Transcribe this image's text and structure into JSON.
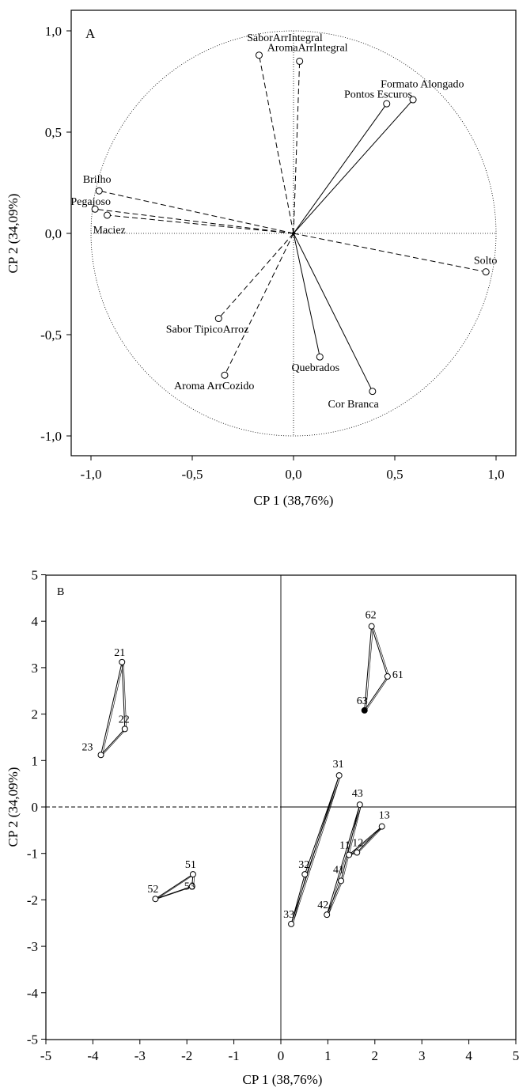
{
  "chart_data": [
    {
      "type": "scatter",
      "panel": "A",
      "xlabel": "CP 1 (38,76%)",
      "ylabel": "CP 2 (34,09%)",
      "xlim": [
        -1.1,
        1.1
      ],
      "ylim": [
        -1.1,
        1.1
      ],
      "xticks": [
        "-1,0",
        "-0,5",
        "0,0",
        "0,5",
        "1,0"
      ],
      "yticks": [
        "1,0",
        "0,5",
        "0,0",
        "-0,5",
        "-1,0"
      ],
      "unit_circle": true,
      "loadings": [
        {
          "label": "SaborArrIntegral",
          "x": -0.17,
          "y": 0.88,
          "style": "dashed"
        },
        {
          "label": "AromaArrIntegral",
          "x": 0.03,
          "y": 0.85,
          "style": "dashed"
        },
        {
          "label": "Formato Alongado",
          "x": 0.59,
          "y": 0.66,
          "style": "solid"
        },
        {
          "label": "Pontos Escuros",
          "x": 0.46,
          "y": 0.64,
          "style": "solid"
        },
        {
          "label": "Brilho",
          "x": -0.96,
          "y": 0.21,
          "style": "dashed"
        },
        {
          "label": "Pegajoso",
          "x": -0.98,
          "y": 0.12,
          "style": "dashed"
        },
        {
          "label": "Maciez",
          "x": -0.92,
          "y": 0.09,
          "style": "dashed"
        },
        {
          "label": "Solto",
          "x": 0.95,
          "y": -0.19,
          "style": "dashed"
        },
        {
          "label": "Sabor TipicoArroz",
          "x": -0.37,
          "y": -0.42,
          "style": "dashed"
        },
        {
          "label": "Quebrados",
          "x": 0.13,
          "y": -0.61,
          "style": "solid"
        },
        {
          "label": "Aroma ArrCozido",
          "x": -0.34,
          "y": -0.7,
          "style": "dashed"
        },
        {
          "label": "Cor Branca",
          "x": 0.39,
          "y": -0.78,
          "style": "solid"
        }
      ]
    },
    {
      "type": "scatter",
      "panel": "B",
      "xlabel": "CP 1 (38,76%)",
      "ylabel": "CP 2 (34,09%)",
      "xlim": [
        -5,
        5
      ],
      "ylim": [
        -5,
        5
      ],
      "xticks": [
        "-5",
        "-4",
        "-3",
        "-2",
        "-1",
        "0",
        "1",
        "2",
        "3",
        "4",
        "5"
      ],
      "yticks": [
        "5",
        "4",
        "3",
        "2",
        "1",
        "0",
        "-1",
        "-2",
        "-3",
        "-4",
        "-5"
      ],
      "points": [
        {
          "label": "21",
          "x": -3.38,
          "y": 3.12
        },
        {
          "label": "22",
          "x": -3.32,
          "y": 1.68
        },
        {
          "label": "23",
          "x": -3.83,
          "y": 1.12
        },
        {
          "label": "31",
          "x": 1.24,
          "y": 0.68
        },
        {
          "label": "32",
          "x": 0.51,
          "y": -1.45
        },
        {
          "label": "33",
          "x": 0.22,
          "y": -2.52
        },
        {
          "label": "11",
          "x": 1.45,
          "y": -1.03
        },
        {
          "label": "12",
          "x": 1.62,
          "y": -0.98
        },
        {
          "label": "13",
          "x": 2.15,
          "y": -0.42
        },
        {
          "label": "41",
          "x": 1.28,
          "y": -1.59
        },
        {
          "label": "42",
          "x": 0.98,
          "y": -2.32
        },
        {
          "label": "43",
          "x": 1.68,
          "y": 0.05
        },
        {
          "label": "51",
          "x": -1.87,
          "y": -1.45
        },
        {
          "label": "52",
          "x": -2.67,
          "y": -1.98
        },
        {
          "label": "53",
          "x": -1.89,
          "y": -1.71
        },
        {
          "label": "61",
          "x": 2.27,
          "y": 2.81
        },
        {
          "label": "62",
          "x": 1.93,
          "y": 3.89
        },
        {
          "label": "63",
          "x": 1.78,
          "y": 2.08
        }
      ],
      "groups": [
        [
          "21",
          "22",
          "23"
        ],
        [
          "31",
          "32",
          "33"
        ],
        [
          "11",
          "12",
          "13"
        ],
        [
          "41",
          "42",
          "43"
        ],
        [
          "51",
          "52",
          "53"
        ],
        [
          "61",
          "62",
          "63"
        ]
      ]
    }
  ]
}
